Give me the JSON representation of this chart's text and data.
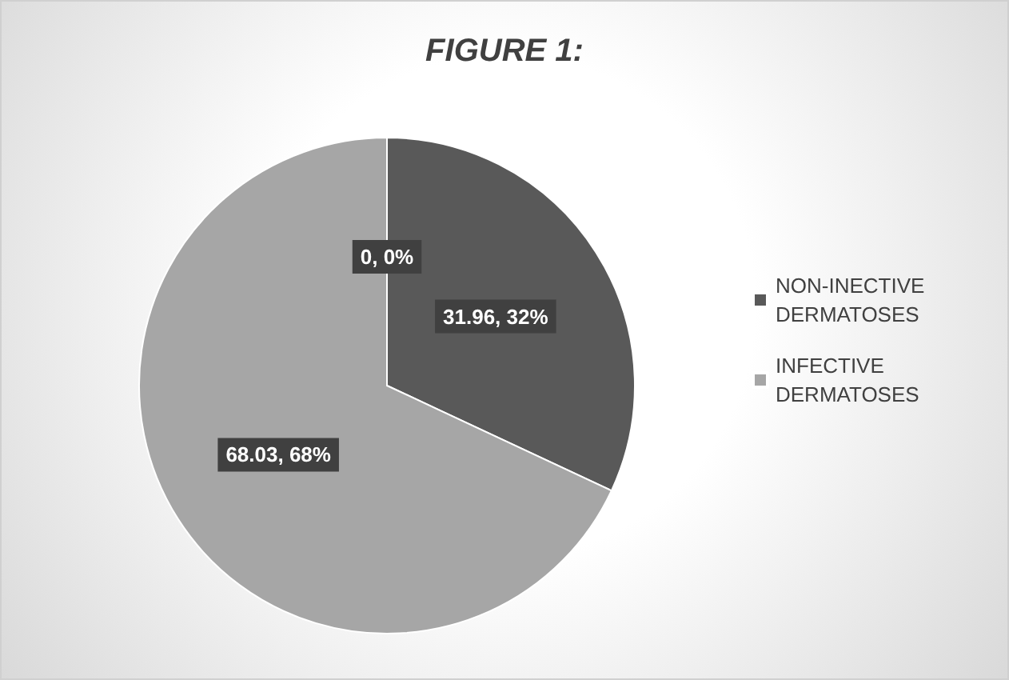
{
  "chart_data": {
    "type": "pie",
    "title": "FIGURE 1:",
    "categories": [
      "NON-INECTIVE DERMATOSES",
      "INFECTIVE DERMATOSES",
      null
    ],
    "values": [
      31.96,
      68.03,
      0
    ],
    "value_labels": [
      "31.96, 32%",
      "68.03, 68%",
      "0, 0%"
    ],
    "colors": [
      "#595959",
      "#a6a6a6",
      "#7f7f7f"
    ],
    "legend": "right"
  }
}
